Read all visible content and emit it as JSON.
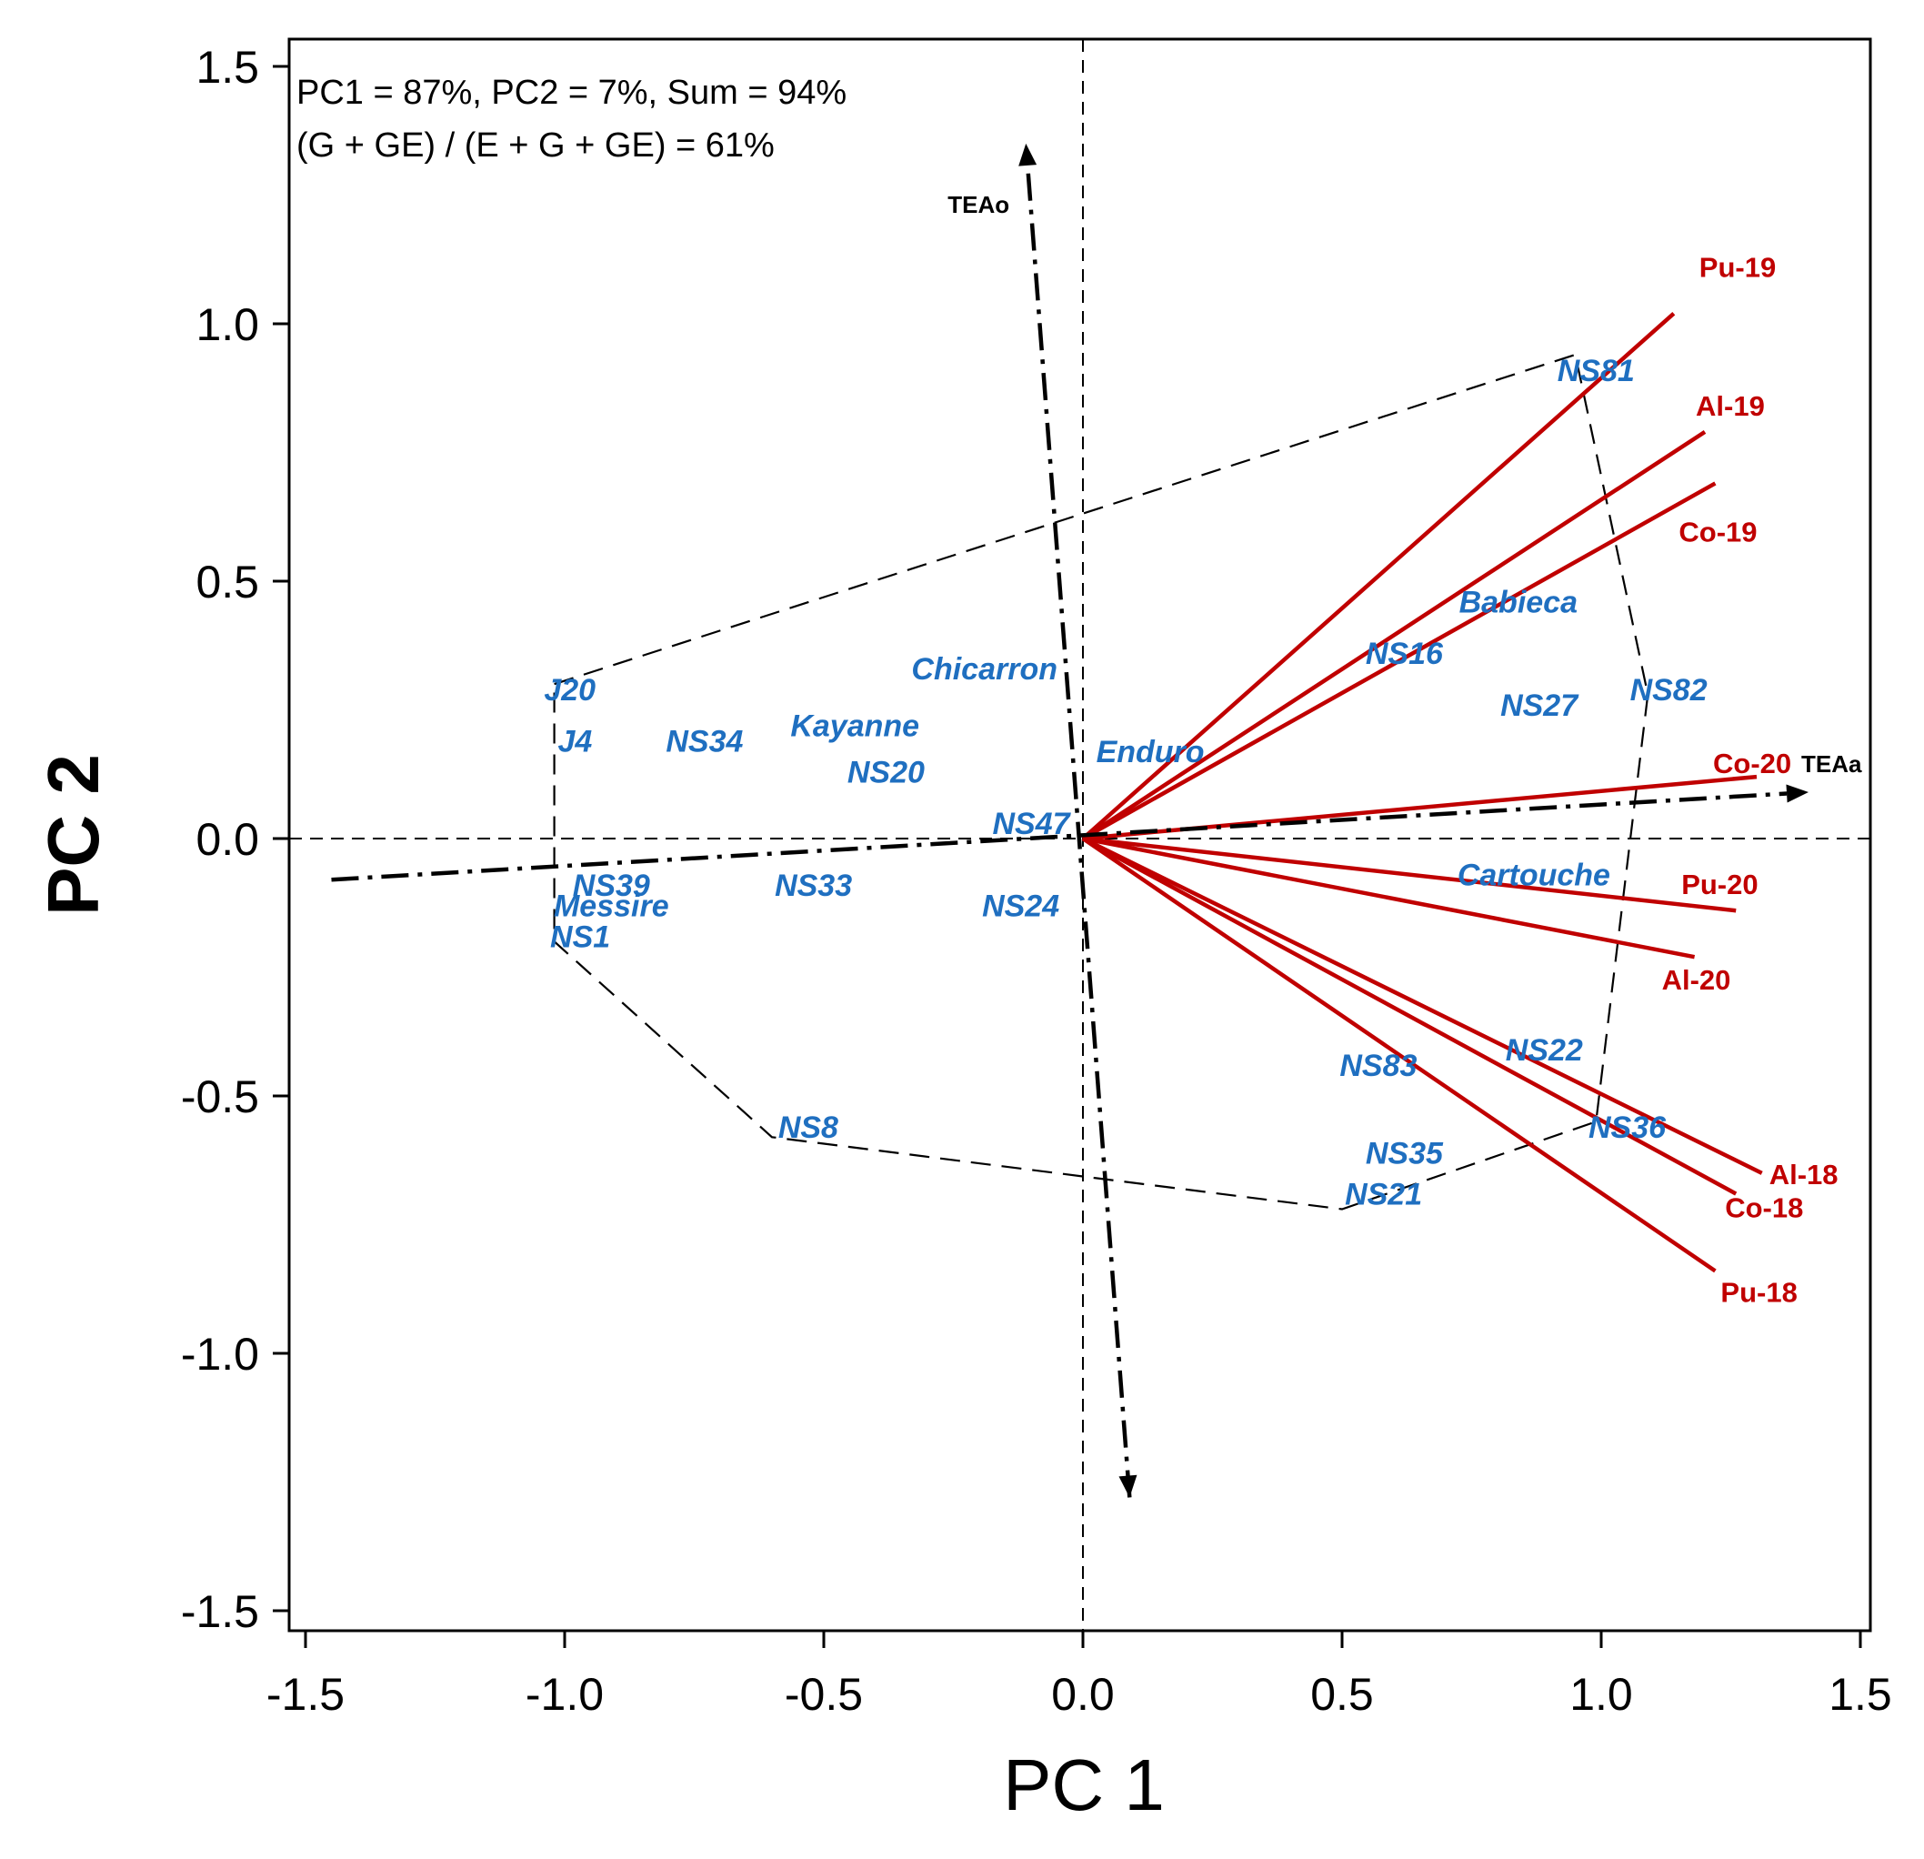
{
  "chart_data": {
    "type": "scatter",
    "subtype": "GGE biplot",
    "xlabel": "PC 1",
    "ylabel": "PC 2",
    "xlim": [
      -1.55,
      1.55
    ],
    "ylim": [
      -1.55,
      1.55
    ],
    "xticks": [
      "-1.5",
      "-1.0",
      "-0.5",
      "0.0",
      "0.5",
      "1.0",
      "1.5"
    ],
    "yticks": [
      "1.5",
      "1.0",
      "0.5",
      "0.0",
      "-0.5",
      "-1.0",
      "-1.5"
    ],
    "annotation_lines": [
      "PC1 =  87%,  PC2 = 7%, Sum = 94%",
      "(G + GE) / (E + G + GE) = 61%"
    ],
    "genotypes": [
      {
        "name": "NS81",
        "x": 0.99,
        "y": 0.91
      },
      {
        "name": "Babieca",
        "x": 0.84,
        "y": 0.46
      },
      {
        "name": "NS16",
        "x": 0.62,
        "y": 0.36
      },
      {
        "name": "NS82",
        "x": 1.13,
        "y": 0.29
      },
      {
        "name": "NS27",
        "x": 0.88,
        "y": 0.26
      },
      {
        "name": "Chicarron",
        "x": -0.19,
        "y": 0.33
      },
      {
        "name": "Kayanne",
        "x": -0.44,
        "y": 0.22
      },
      {
        "name": "NS20",
        "x": -0.38,
        "y": 0.13
      },
      {
        "name": "Enduro",
        "x": 0.13,
        "y": 0.17
      },
      {
        "name": "NS47",
        "x": -0.1,
        "y": 0.03
      },
      {
        "name": "J20",
        "x": -0.99,
        "y": 0.29
      },
      {
        "name": "J4",
        "x": -0.98,
        "y": 0.19
      },
      {
        "name": "NS34",
        "x": -0.73,
        "y": 0.19
      },
      {
        "name": "Cartouche",
        "x": 0.87,
        "y": -0.07
      },
      {
        "name": "NS39",
        "x": -0.91,
        "y": -0.09
      },
      {
        "name": "Messire",
        "x": -0.91,
        "y": -0.13
      },
      {
        "name": "NS1",
        "x": -0.97,
        "y": -0.19
      },
      {
        "name": "NS33",
        "x": -0.52,
        "y": -0.09
      },
      {
        "name": "NS24",
        "x": -0.12,
        "y": -0.13
      },
      {
        "name": "NS22",
        "x": 0.89,
        "y": -0.41
      },
      {
        "name": "NS83",
        "x": 0.57,
        "y": -0.44
      },
      {
        "name": "NS8",
        "x": -0.53,
        "y": -0.56
      },
      {
        "name": "NS36",
        "x": 1.05,
        "y": -0.56
      },
      {
        "name": "NS35",
        "x": 0.62,
        "y": -0.61
      },
      {
        "name": "NS21",
        "x": 0.58,
        "y": -0.69
      }
    ],
    "environments": [
      {
        "name": "Pu-19",
        "x": 1.14,
        "y": 1.02
      },
      {
        "name": "Al-19",
        "x": 1.2,
        "y": 0.79
      },
      {
        "name": "Co-19",
        "x": 1.22,
        "y": 0.69
      },
      {
        "name": "Co-20",
        "x": 1.3,
        "y": 0.12
      },
      {
        "name": "Pu-20",
        "x": 1.26,
        "y": -0.14
      },
      {
        "name": "Al-20",
        "x": 1.18,
        "y": -0.23
      },
      {
        "name": "Al-18",
        "x": 1.31,
        "y": -0.65
      },
      {
        "name": "Co-18",
        "x": 1.26,
        "y": -0.69
      },
      {
        "name": "Pu-18",
        "x": 1.22,
        "y": -0.84
      }
    ],
    "axis_arrows": [
      {
        "name": "TEAa",
        "from": [
          -1.45,
          -0.08
        ],
        "to": [
          1.4,
          0.09
        ]
      },
      {
        "name": "TEAo",
        "from": [
          0.09,
          -1.28
        ],
        "to": [
          -0.11,
          1.35
        ]
      }
    ],
    "polygon_vertices": [
      [
        -1.02,
        0.3
      ],
      [
        0.95,
        0.94
      ],
      [
        1.09,
        0.28
      ],
      [
        0.99,
        -0.55
      ],
      [
        0.5,
        -0.72
      ],
      [
        -0.6,
        -0.58
      ],
      [
        -1.02,
        -0.2
      ]
    ],
    "colors": {
      "genotype": "#1f6fc0",
      "environment": "#c00000",
      "axes": "#000000"
    }
  }
}
